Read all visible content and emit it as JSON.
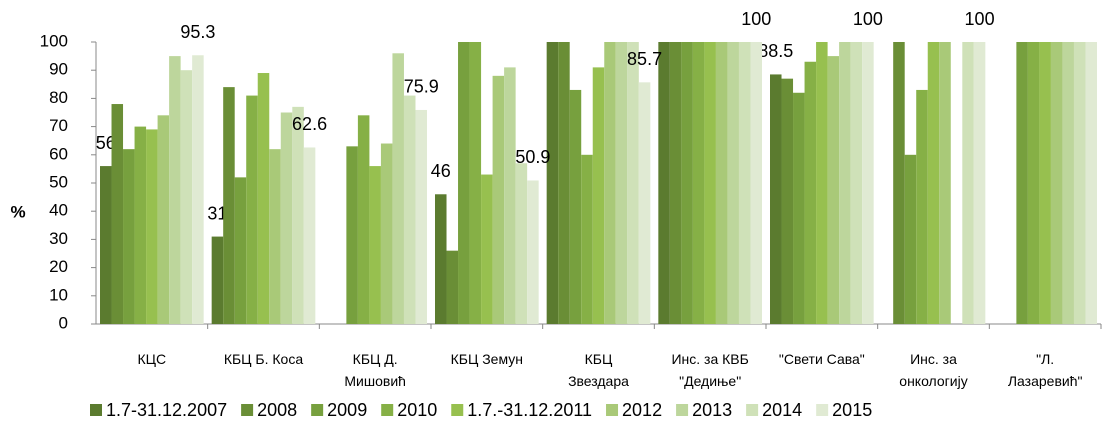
{
  "chart_data": {
    "type": "bar",
    "y_label": "%",
    "categories": [
      "КЦС",
      "КБЦ Б. Коса",
      "КБЦ Д.\nМишовић",
      "КБЦ Земун",
      "КБЦ\nЗвездара",
      "Инс. за КВБ\n\"Дедиње\"",
      "\"Свети Сава\"",
      "Инс. за\nонкологију",
      "\"Л.\nЛазаревић\""
    ],
    "ylim": [
      0,
      100
    ],
    "yticks": [
      0,
      10,
      20,
      30,
      40,
      50,
      60,
      70,
      80,
      90,
      100
    ],
    "grid": false,
    "legend": "bottom",
    "series": [
      {
        "name": "1.7-31.12.2007",
        "color": "#5b7b2f",
        "values": [
          56,
          31,
          null,
          46,
          100,
          100,
          88.5,
          null,
          null
        ],
        "value_labels": [
          "56",
          "31",
          null,
          "46",
          null,
          null,
          "88.5",
          null,
          null
        ]
      },
      {
        "name": "2008",
        "color": "#6a8e36",
        "values": [
          78,
          84,
          null,
          26,
          100,
          100,
          87,
          100,
          null
        ]
      },
      {
        "name": "2009",
        "color": "#77a03e",
        "values": [
          62,
          52,
          63,
          100,
          83,
          100,
          82,
          60,
          100
        ]
      },
      {
        "name": "2010",
        "color": "#86b046",
        "values": [
          70,
          81,
          74,
          100,
          60,
          100,
          93,
          83,
          100
        ]
      },
      {
        "name": "1.7.-31.12.2011",
        "color": "#97c04f",
        "values": [
          69,
          89,
          56,
          53,
          91,
          100,
          100,
          100,
          100
        ]
      },
      {
        "name": "2012",
        "color": "#a9c978",
        "values": [
          74,
          62,
          64,
          88,
          100,
          100,
          95,
          100,
          100
        ]
      },
      {
        "name": "2013",
        "color": "#bdd69c",
        "values": [
          95,
          75,
          96,
          91,
          100,
          100,
          100,
          null,
          100
        ]
      },
      {
        "name": "2014",
        "color": "#cfe1b8",
        "values": [
          90,
          77,
          81,
          57,
          100,
          100,
          100,
          100,
          100
        ]
      },
      {
        "name": "2015",
        "color": "#e0ead3",
        "values": [
          95.3,
          62.6,
          75.9,
          50.9,
          85.7,
          100,
          100,
          100,
          100
        ],
        "value_labels": [
          "95.3",
          "62.6",
          "75.9",
          "50.9",
          "85.7",
          "100",
          "100",
          "100",
          null
        ]
      }
    ]
  }
}
